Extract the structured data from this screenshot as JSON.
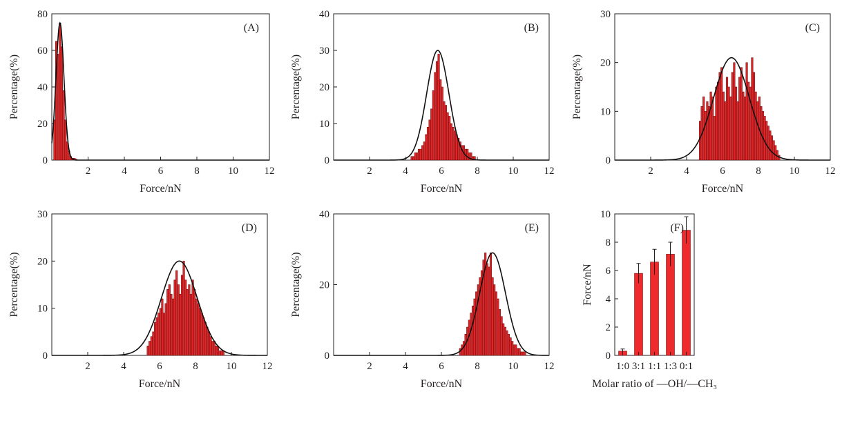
{
  "chart_data": [
    {
      "panel": "(A)",
      "type": "bar",
      "subtype": "histogram-with-gaussian-fit",
      "xlabel": "Force/nN",
      "ylabel": "Percentage(%)",
      "xlim": [
        0,
        12
      ],
      "ylim": [
        0,
        80
      ],
      "xticks": [
        2,
        4,
        6,
        8,
        10,
        12
      ],
      "yticks": [
        0,
        20,
        40,
        60,
        80
      ],
      "fit": {
        "mean": 0.45,
        "sigma": 0.22,
        "peak": 75
      },
      "bins": {
        "start": 0.1,
        "width": 0.1,
        "values": [
          22,
          65,
          58,
          75,
          62,
          38,
          22,
          10,
          5,
          2,
          1,
          1,
          0.5
        ]
      }
    },
    {
      "panel": "(B)",
      "type": "bar",
      "subtype": "histogram-with-gaussian-fit",
      "xlabel": "Force/nN",
      "ylabel": "Percentage(%)",
      "xlim": [
        0,
        12
      ],
      "ylim": [
        0,
        40
      ],
      "xticks": [
        2,
        4,
        6,
        8,
        10,
        12
      ],
      "yticks": [
        0,
        10,
        20,
        30,
        40
      ],
      "fit": {
        "mean": 5.8,
        "sigma": 0.62,
        "peak": 30
      },
      "bins": {
        "start": 4.3,
        "width": 0.1,
        "values": [
          1,
          1,
          2,
          2,
          3,
          3,
          4,
          5,
          7,
          9,
          11,
          14,
          19,
          24,
          27,
          29,
          22,
          20,
          16,
          15,
          13,
          12,
          10,
          9,
          8,
          7,
          6,
          5,
          4,
          4,
          3,
          3,
          2,
          2,
          1,
          1
        ]
      }
    },
    {
      "panel": "(C)",
      "type": "bar",
      "subtype": "histogram-with-gaussian-fit",
      "xlabel": "Force/nN",
      "ylabel": "Percentage(%)",
      "xlim": [
        0,
        12
      ],
      "ylim": [
        0,
        30
      ],
      "xticks": [
        2,
        4,
        6,
        8,
        10,
        12
      ],
      "yticks": [
        0,
        10,
        20,
        30
      ],
      "fit": {
        "mean": 6.5,
        "sigma": 1.0,
        "peak": 21
      },
      "bins": {
        "start": 4.7,
        "width": 0.1,
        "values": [
          8,
          11,
          13,
          10,
          12,
          11,
          14,
          13,
          9,
          15,
          16,
          18,
          19,
          14,
          12,
          17,
          15,
          13,
          18,
          20,
          15,
          12,
          17,
          19,
          14,
          13,
          20,
          16,
          15,
          21,
          18,
          14,
          12,
          13,
          11,
          10,
          9,
          8,
          7,
          6,
          5,
          4,
          3,
          2,
          1
        ]
      }
    },
    {
      "panel": "(D)",
      "type": "bar",
      "subtype": "histogram-with-gaussian-fit",
      "xlabel": "Force/nN",
      "ylabel": "Percentage(%)",
      "xlim": [
        0,
        12
      ],
      "ylim": [
        0,
        30
      ],
      "xticks": [
        2,
        4,
        6,
        8,
        10,
        12
      ],
      "yticks": [
        0,
        10,
        20,
        30
      ],
      "fit": {
        "mean": 7.1,
        "sigma": 1.0,
        "peak": 20
      },
      "bins": {
        "start": 5.3,
        "width": 0.1,
        "values": [
          2,
          3,
          4,
          5,
          7,
          8,
          9,
          10,
          12,
          9,
          11,
          14,
          15,
          13,
          12,
          16,
          18,
          15,
          13,
          17,
          20,
          16,
          14,
          15,
          13,
          16,
          14,
          12,
          11,
          10,
          9,
          8,
          7,
          6,
          5,
          4,
          3,
          3,
          2,
          2,
          1,
          1,
          1
        ]
      }
    },
    {
      "panel": "(E)",
      "type": "bar",
      "subtype": "histogram-with-gaussian-fit",
      "xlabel": "Force/nN",
      "ylabel": "Percentage(%)",
      "xlim": [
        0,
        12
      ],
      "ylim": [
        0,
        40
      ],
      "xticks": [
        2,
        4,
        6,
        8,
        10,
        12
      ],
      "yticks": [
        0,
        20,
        40
      ],
      "fit": {
        "mean": 8.85,
        "sigma": 0.72,
        "peak": 29
      },
      "bins": {
        "start": 7.0,
        "width": 0.1,
        "values": [
          2,
          3,
          4,
          6,
          8,
          10,
          12,
          14,
          16,
          18,
          20,
          22,
          24,
          27,
          29,
          26,
          25,
          29,
          22,
          20,
          18,
          16,
          13,
          11,
          9,
          8,
          7,
          6,
          5,
          4,
          3,
          3,
          2,
          2,
          1,
          1,
          1
        ]
      }
    },
    {
      "panel": "(F)",
      "type": "bar",
      "subtype": "bar-with-error-bars",
      "xlabel": "Molar ratio of —OH/—CH₃",
      "ylabel": "Force/nN",
      "ylim": [
        0,
        10
      ],
      "yticks": [
        0,
        2,
        4,
        6,
        8,
        10
      ],
      "categories": [
        "1:0",
        "3:1",
        "1:1",
        "1:3",
        "0:1"
      ],
      "values": [
        0.3,
        5.8,
        6.6,
        7.15,
        8.85
      ],
      "errors": [
        0.15,
        0.7,
        0.9,
        0.85,
        0.95
      ]
    }
  ]
}
